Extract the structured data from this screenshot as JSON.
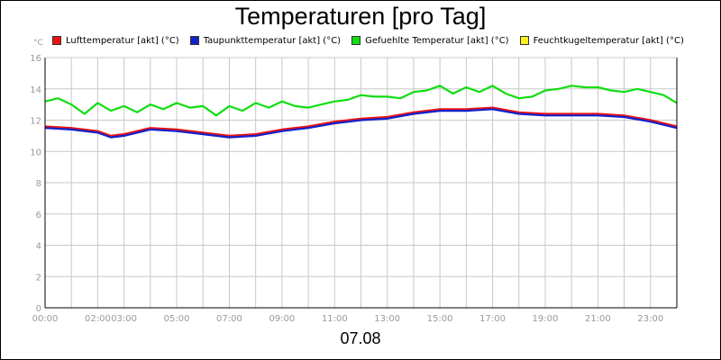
{
  "chart_data": {
    "type": "line",
    "title": "Temperaturen [pro Tag]",
    "xlabel": "07.08",
    "ylabel": "°C",
    "ylim": [
      0,
      16
    ],
    "yticks": [
      "0",
      "2",
      "4",
      "6",
      "8",
      "10",
      "12",
      "14",
      "16"
    ],
    "xlim": [
      0,
      24
    ],
    "xticks": [
      {
        "h": 0,
        "label": "00:00"
      },
      {
        "h": 2,
        "label": "02:00"
      },
      {
        "h": 3,
        "label": "03:00"
      },
      {
        "h": 5,
        "label": "05:00"
      },
      {
        "h": 7,
        "label": "07:00"
      },
      {
        "h": 9,
        "label": "09:00"
      },
      {
        "h": 11,
        "label": "11:00"
      },
      {
        "h": 13,
        "label": "13:00"
      },
      {
        "h": 15,
        "label": "15:00"
      },
      {
        "h": 17,
        "label": "17:00"
      },
      {
        "h": 19,
        "label": "19:00"
      },
      {
        "h": 21,
        "label": "21:00"
      },
      {
        "h": 23,
        "label": "23:00"
      }
    ],
    "grid": true,
    "legend_position": "top",
    "series": [
      {
        "name": "Lufttemperatur [akt] (°C)",
        "color": "#ee1111",
        "x": [
          0,
          1,
          2,
          2.5,
          3,
          4,
          5,
          6,
          7,
          8,
          9,
          10,
          11,
          12,
          13,
          14,
          15,
          16,
          17,
          18,
          19,
          20,
          21,
          22,
          23,
          24
        ],
        "y": [
          11.6,
          11.5,
          11.3,
          11.0,
          11.1,
          11.5,
          11.4,
          11.2,
          11.0,
          11.1,
          11.4,
          11.6,
          11.9,
          12.1,
          12.2,
          12.5,
          12.7,
          12.7,
          12.8,
          12.5,
          12.4,
          12.4,
          12.4,
          12.3,
          12.0,
          11.6
        ]
      },
      {
        "name": "Taupunkttemperatur [akt] (°C)",
        "color": "#1122cc",
        "x": [
          0,
          1,
          2,
          2.5,
          3,
          4,
          5,
          6,
          7,
          8,
          9,
          10,
          11,
          12,
          13,
          14,
          15,
          16,
          17,
          18,
          19,
          20,
          21,
          22,
          23,
          24
        ],
        "y": [
          11.5,
          11.4,
          11.2,
          10.9,
          11.0,
          11.4,
          11.3,
          11.1,
          10.9,
          11.0,
          11.3,
          11.5,
          11.8,
          12.0,
          12.1,
          12.4,
          12.6,
          12.6,
          12.7,
          12.4,
          12.3,
          12.3,
          12.3,
          12.2,
          11.9,
          11.5
        ]
      },
      {
        "name": "Gefuehlte Temperatur [akt] (°C)",
        "color": "#11dd11",
        "x": [
          0,
          0.5,
          1,
          1.5,
          2,
          2.5,
          3,
          3.5,
          4,
          4.5,
          5,
          5.5,
          6,
          6.5,
          7,
          7.5,
          8,
          8.5,
          9,
          9.5,
          10,
          10.5,
          11,
          11.5,
          12,
          12.5,
          13,
          13.5,
          14,
          14.5,
          15,
          15.5,
          16,
          16.5,
          17,
          17.5,
          18,
          18.5,
          19,
          19.5,
          20,
          20.5,
          21,
          21.5,
          22,
          22.5,
          23,
          23.5,
          24
        ],
        "y": [
          13.2,
          13.4,
          13.0,
          12.4,
          13.1,
          12.6,
          12.9,
          12.5,
          13.0,
          12.7,
          13.1,
          12.8,
          12.9,
          12.3,
          12.9,
          12.6,
          13.1,
          12.8,
          13.2,
          12.9,
          12.8,
          13.0,
          13.2,
          13.3,
          13.6,
          13.5,
          13.5,
          13.4,
          13.8,
          13.9,
          14.2,
          13.7,
          14.1,
          13.8,
          14.2,
          13.7,
          13.4,
          13.5,
          13.9,
          14.0,
          14.2,
          14.1,
          14.1,
          13.9,
          13.8,
          14.0,
          13.8,
          13.6,
          13.1
        ]
      },
      {
        "name": "Feuchtkugeltemperatur [akt] (°C)",
        "color": "#ffee22",
        "x": [],
        "y": []
      }
    ]
  }
}
